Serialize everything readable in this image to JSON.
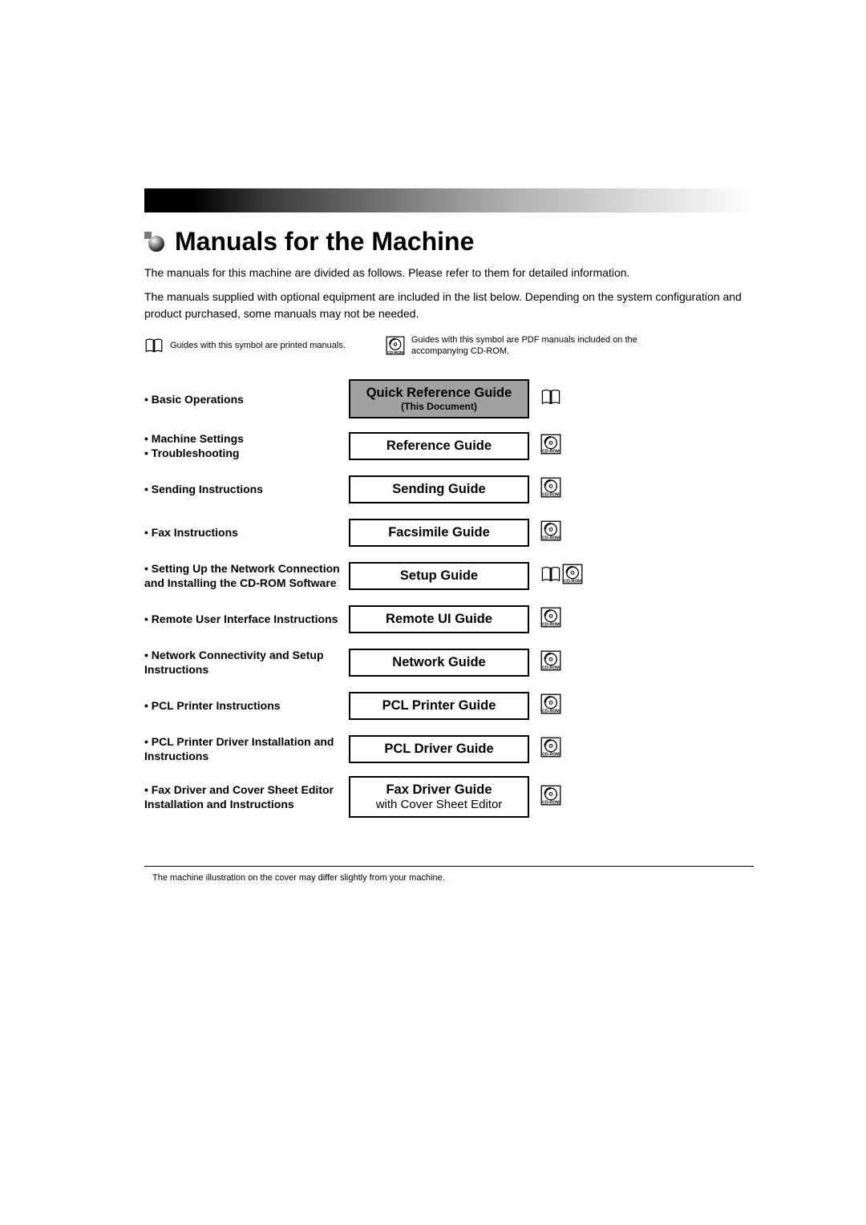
{
  "title": "Manuals for the Machine",
  "intro1": "The manuals for this machine are divided as follows. Please refer to them for detailed information.",
  "intro2": "The manuals supplied with optional equipment are included in the list below. Depending on the system configuration and product purchased, some manuals may not be needed.",
  "legend_book": "Guides with this symbol are printed manuals.",
  "legend_cd": "Guides with this symbol are PDF manuals included on the accompanying CD-ROM.",
  "rows": [
    {
      "desc": [
        "Basic Operations"
      ],
      "title": "Quick Reference Guide",
      "sub": "(This Document)",
      "sub_normal": false,
      "highlight": true,
      "icons": [
        "book"
      ]
    },
    {
      "desc": [
        "Machine Settings",
        "Troubleshooting"
      ],
      "title": "Reference Guide",
      "sub": "",
      "icons": [
        "cd"
      ]
    },
    {
      "desc": [
        "Sending Instructions"
      ],
      "title": "Sending Guide",
      "sub": "",
      "icons": [
        "cd"
      ]
    },
    {
      "desc": [
        "Fax Instructions"
      ],
      "title": "Facsimile Guide",
      "sub": "",
      "icons": [
        "cd"
      ]
    },
    {
      "desc": [
        "Setting Up the Network Connection and Installing the CD-ROM Software"
      ],
      "title": "Setup Guide",
      "sub": "",
      "icons": [
        "book",
        "cd"
      ]
    },
    {
      "desc": [
        "Remote User Interface Instructions"
      ],
      "title": "Remote UI Guide",
      "sub": "",
      "icons": [
        "cd"
      ]
    },
    {
      "desc": [
        "Network Connectivity and Setup Instructions"
      ],
      "title": "Network Guide",
      "sub": "",
      "icons": [
        "cd"
      ]
    },
    {
      "desc": [
        "PCL Printer Instructions"
      ],
      "title": "PCL Printer Guide",
      "sub": "",
      "icons": [
        "cd"
      ]
    },
    {
      "desc": [
        "PCL Printer Driver Installation and Instructions"
      ],
      "title": "PCL Driver Guide",
      "sub": "",
      "icons": [
        "cd"
      ]
    },
    {
      "desc": [
        "Fax Driver and Cover Sheet Editor Installation and Instructions"
      ],
      "title": "Fax Driver Guide",
      "sub": "with Cover Sheet Editor",
      "sub_normal": true,
      "icons": [
        "cd"
      ]
    }
  ],
  "footnote": "The machine illustration on the cover may differ slightly from your machine.",
  "colors": {
    "highlight_bg": "#a0a0a0"
  }
}
